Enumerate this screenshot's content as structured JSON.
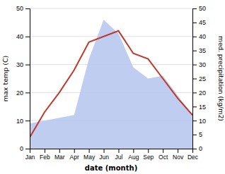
{
  "chart_data": {
    "type": "line",
    "categories": [
      "Jan",
      "Feb",
      "Mar",
      "Apr",
      "May",
      "Jun",
      "Jul",
      "Aug",
      "Sep",
      "Oct",
      "Nov",
      "Dec"
    ],
    "series": [
      {
        "type": "area",
        "color": "#b8c8f0",
        "axis": "y2",
        "values": [
          9,
          10,
          11,
          12,
          32,
          46,
          41,
          29,
          25,
          26,
          19,
          12
        ]
      },
      {
        "type": "line",
        "color": "#c0392b",
        "values": [
          4,
          13,
          20,
          28,
          38,
          40,
          42,
          34,
          32,
          25,
          18,
          12
        ]
      }
    ],
    "xlabel": "date (month)",
    "ylabel": "max temp (C)",
    "y2label": "med. precipitation (kg/m2)",
    "ylim": [
      0,
      50
    ],
    "yticks": [
      0,
      10,
      20,
      30,
      40,
      50
    ],
    "y2lim": [
      0,
      50
    ],
    "y2ticks": [
      0,
      5,
      10,
      15,
      20,
      25,
      30,
      35,
      40,
      45,
      50
    ],
    "grid": true
  }
}
